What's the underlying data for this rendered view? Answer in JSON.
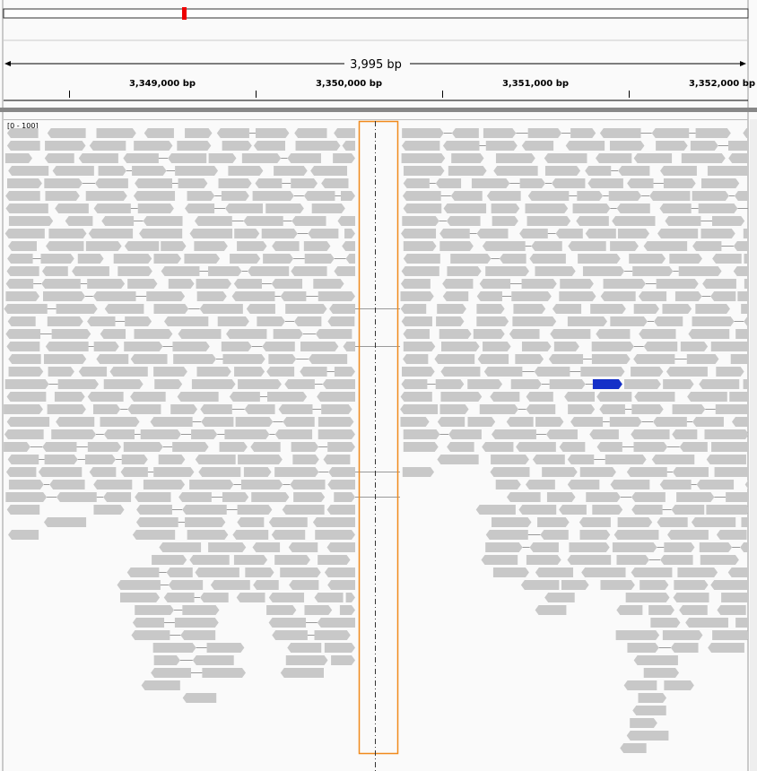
{
  "ruler": {
    "span": "3,995 bp",
    "ticks": [
      "3,349,000 bp",
      "3,350,000 bp",
      "3,351,000 bp",
      "3,352,000 bp"
    ]
  },
  "track": {
    "range": "[0 - 100]"
  }
}
